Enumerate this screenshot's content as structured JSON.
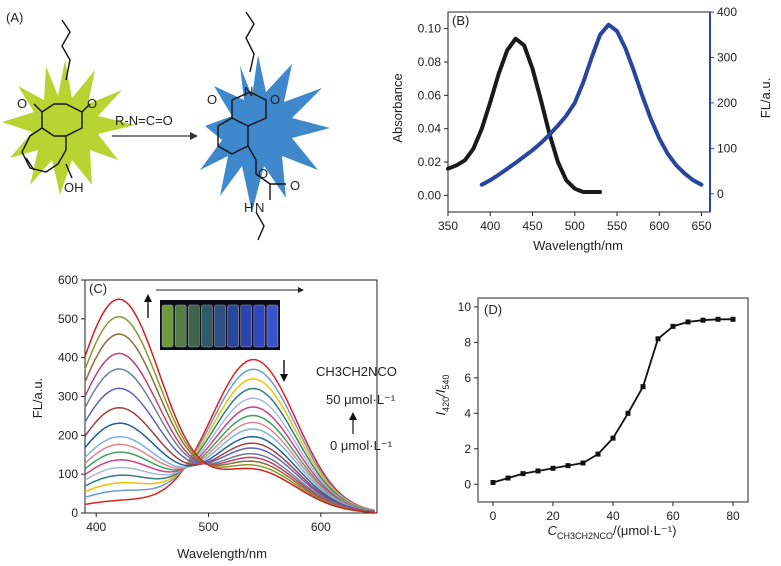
{
  "panels": {
    "a": {
      "label": "(A)",
      "reagent": "R-N=C=O",
      "left_molecule": {
        "oxo_top": "O",
        "oxo_right": "O",
        "hydroxyl": "OH"
      },
      "right_molecule": {
        "imide_o": "O",
        "imide_n": "N",
        "ester_o": "O",
        "carbonyl_o": "O",
        "amine": "H",
        "amine_n": "N"
      },
      "left_burst_color": "#b8d432",
      "right_burst_color": "#3f88cc"
    }
  },
  "colors": {
    "black_curve": "#1a1a1a",
    "blue_curve": "#2a45a0",
    "axis_blue": "#2a45a0"
  },
  "chart_data": [
    {
      "id": "B",
      "type": "line",
      "panel_label": "(B)",
      "xlabel": "Wavelength/nm",
      "ylabel_left": "Absorbance",
      "ylabel_right": "FL/a.u.",
      "xlim": [
        350,
        660
      ],
      "ylim_left": [
        -0.01,
        0.11
      ],
      "ylim_right": [
        -40,
        400
      ],
      "x_ticks": [
        350,
        400,
        450,
        500,
        550,
        600,
        650
      ],
      "y_ticks_left": [
        "0.00",
        "0.02",
        "0.04",
        "0.06",
        "0.08",
        "0.10"
      ],
      "y_ticks_right": [
        "0",
        "100",
        "200",
        "300",
        "400"
      ],
      "series": [
        {
          "axis": "left",
          "x": [
            350,
            360,
            370,
            380,
            390,
            400,
            410,
            420,
            430,
            440,
            450,
            460,
            470,
            480,
            490,
            500,
            510,
            520,
            530
          ],
          "values": [
            0.016,
            0.018,
            0.021,
            0.028,
            0.04,
            0.056,
            0.073,
            0.087,
            0.094,
            0.09,
            0.076,
            0.057,
            0.037,
            0.02,
            0.009,
            0.004,
            0.002,
            0.002,
            0.002
          ]
        },
        {
          "axis": "right",
          "x": [
            390,
            400,
            410,
            420,
            430,
            440,
            450,
            460,
            470,
            480,
            490,
            500,
            510,
            520,
            530,
            540,
            550,
            560,
            570,
            580,
            590,
            600,
            610,
            620,
            630,
            640,
            650
          ],
          "values": [
            20,
            30,
            42,
            55,
            68,
            82,
            96,
            112,
            130,
            150,
            172,
            200,
            245,
            300,
            350,
            372,
            358,
            320,
            270,
            215,
            165,
            122,
            88,
            63,
            45,
            30,
            20
          ]
        }
      ]
    },
    {
      "id": "C",
      "type": "line",
      "panel_label": "(C)",
      "xlabel": "Wavelength/nm",
      "ylabel": "FL/a.u.",
      "xlim": [
        390,
        650
      ],
      "ylim": [
        0,
        600
      ],
      "x_ticks": [
        400,
        500,
        600
      ],
      "y_ticks": [
        0,
        100,
        200,
        300,
        400,
        500,
        600
      ],
      "annotations": {
        "reagent": "CH3CH2NCO",
        "high": "50 μmol·L⁻¹",
        "low": "0 μmol·L⁻¹"
      },
      "vial_colors": [
        "#6f9a3c",
        "#557a44",
        "#3f6648",
        "#2f5a66",
        "#2d4f86",
        "#2a479a",
        "#2c46b0",
        "#3048be",
        "#3a55cc"
      ],
      "series": [
        {
          "color": "#e02020",
          "peak1": 30,
          "peak2": 395
        },
        {
          "color": "#6a9bd8",
          "peak1": 55,
          "peak2": 370
        },
        {
          "color": "#f0c000",
          "peak1": 75,
          "peak2": 345
        },
        {
          "color": "#2c8080",
          "peak1": 95,
          "peak2": 320
        },
        {
          "color": "#a8b8d8",
          "peak1": 115,
          "peak2": 295
        },
        {
          "color": "#d04080",
          "peak1": 135,
          "peak2": 272
        },
        {
          "color": "#40a060",
          "peak1": 155,
          "peak2": 250
        },
        {
          "color": "#e08888",
          "peak1": 175,
          "peak2": 232
        },
        {
          "color": "#7fb4d8",
          "peak1": 195,
          "peak2": 215
        },
        {
          "color": "#2060a0",
          "peak1": 230,
          "peak2": 195
        },
        {
          "color": "#a04040",
          "peak1": 270,
          "peak2": 178
        },
        {
          "color": "#6060c0",
          "peak1": 320,
          "peak2": 165
        },
        {
          "color": "#708090",
          "peak1": 370,
          "peak2": 150
        },
        {
          "color": "#c04070",
          "peak1": 410,
          "peak2": 140
        },
        {
          "color": "#8a6e3a",
          "peak1": 460,
          "peak2": 130
        },
        {
          "color": "#889a30",
          "peak1": 505,
          "peak2": 120
        },
        {
          "color": "#d02020",
          "peak1": 550,
          "peak2": 110
        }
      ]
    },
    {
      "id": "D",
      "type": "line",
      "panel_label": "(D)",
      "xlabel_main": "C",
      "xlabel_sub": "CH3CH2NCO",
      "xlabel_unit": "/(μmol·L⁻¹)",
      "ylabel_i1": "I",
      "ylabel_sub1": "420",
      "ylabel_i2": "/I",
      "ylabel_sub2": "540",
      "xlim": [
        -5,
        85
      ],
      "ylim": [
        -1,
        10.5
      ],
      "x_ticks": [
        0,
        20,
        40,
        60,
        80
      ],
      "y_ticks": [
        0,
        2,
        4,
        6,
        8,
        10
      ],
      "x": [
        0,
        5,
        10,
        15,
        20,
        25,
        30,
        35,
        40,
        45,
        50,
        55,
        60,
        65,
        70,
        75,
        80
      ],
      "values": [
        0.1,
        0.35,
        0.6,
        0.75,
        0.9,
        1.05,
        1.2,
        1.7,
        2.6,
        4.0,
        5.5,
        8.2,
        8.9,
        9.15,
        9.25,
        9.3,
        9.3
      ]
    }
  ]
}
